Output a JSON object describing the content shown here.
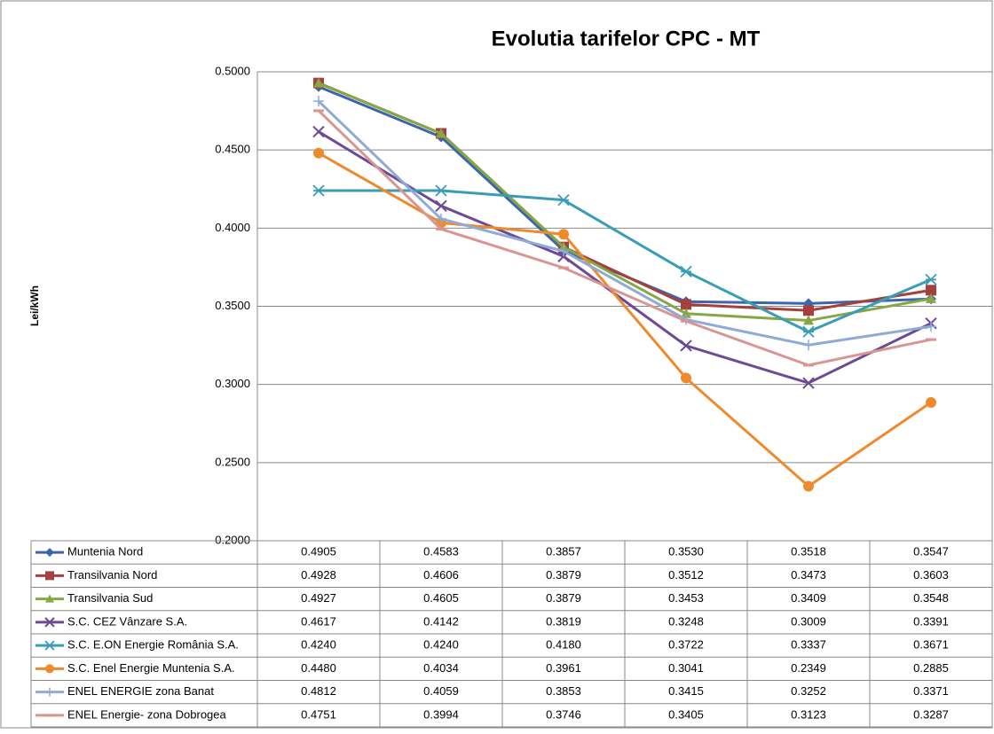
{
  "chart_data": {
    "type": "line",
    "title": "Evolutia tarifelor CPC - MT",
    "y_label": "Lei/kWh",
    "categories": [
      null,
      null,
      null,
      null,
      null,
      null
    ],
    "ylim": [
      0.2,
      0.5
    ],
    "yticks": [
      {
        "value": 0.2,
        "label": "0.2000"
      },
      {
        "value": 0.25,
        "label": "0.2500"
      },
      {
        "value": 0.3,
        "label": "0.3000"
      },
      {
        "value": 0.35,
        "label": "0.3500"
      },
      {
        "value": 0.4,
        "label": "0.4000"
      },
      {
        "value": 0.45,
        "label": "0.4500"
      },
      {
        "value": 0.5,
        "label": "0.5000"
      }
    ],
    "grid": true,
    "data_table": true,
    "series": [
      {
        "name": "Muntenia Nord",
        "color": "#3b66ad",
        "marker": "diamond",
        "values": [
          0.4905,
          0.4583,
          0.3857,
          0.353,
          0.3518,
          0.3547
        ],
        "value_labels": [
          "0.4905",
          "0.4583",
          "0.3857",
          "0.3530",
          "0.3518",
          "0.3547"
        ]
      },
      {
        "name": "Transilvania Nord",
        "color": "#a5403c",
        "marker": "square",
        "values": [
          0.4928,
          0.4606,
          0.3879,
          0.3512,
          0.3473,
          0.3603
        ],
        "value_labels": [
          "0.4928",
          "0.4606",
          "0.3879",
          "0.3512",
          "0.3473",
          "0.3603"
        ]
      },
      {
        "name": "Transilvania Sud",
        "color": "#85a844",
        "marker": "triangle",
        "values": [
          0.4927,
          0.4605,
          0.3879,
          0.3453,
          0.3409,
          0.3548
        ],
        "value_labels": [
          "0.4927",
          "0.4605",
          "0.3879",
          "0.3453",
          "0.3409",
          "0.3548"
        ]
      },
      {
        "name": "S.C. CEZ Vânzare S.A.",
        "color": "#6d4b94",
        "marker": "x",
        "values": [
          0.4617,
          0.4142,
          0.3819,
          0.3248,
          0.3009,
          0.3391
        ],
        "value_labels": [
          "0.4617",
          "0.4142",
          "0.3819",
          "0.3248",
          "0.3009",
          "0.3391"
        ]
      },
      {
        "name": "S.C. E.ON Energie România S.A.",
        "color": "#3a9db6",
        "marker": "star",
        "values": [
          0.424,
          0.424,
          0.418,
          0.3722,
          0.3337,
          0.3671
        ],
        "value_labels": [
          "0.4240",
          "0.4240",
          "0.4180",
          "0.3722",
          "0.3337",
          "0.3671"
        ]
      },
      {
        "name": "S.C. Enel Energie Muntenia S.A.",
        "color": "#ee8a2c",
        "marker": "circle",
        "values": [
          0.448,
          0.4034,
          0.3961,
          0.3041,
          0.2349,
          0.2885
        ],
        "value_labels": [
          "0.4480",
          "0.4034",
          "0.3961",
          "0.3041",
          "0.2349",
          "0.2885"
        ]
      },
      {
        "name": "ENEL ENERGIE zona Banat",
        "color": "#8eaad6",
        "marker": "plus",
        "values": [
          0.4812,
          0.4059,
          0.3853,
          0.3415,
          0.3252,
          0.3371
        ],
        "value_labels": [
          "0.4812",
          "0.4059",
          "0.3853",
          "0.3415",
          "0.3252",
          "0.3371"
        ]
      },
      {
        "name": "ENEL Energie- zona Dobrogea",
        "color": "#d99592",
        "marker": "dash",
        "values": [
          0.4751,
          0.3994,
          0.3746,
          0.3405,
          0.3123,
          0.3287
        ],
        "value_labels": [
          "0.4751",
          "0.3994",
          "0.3746",
          "0.3405",
          "0.3123",
          "0.3287"
        ]
      }
    ]
  }
}
